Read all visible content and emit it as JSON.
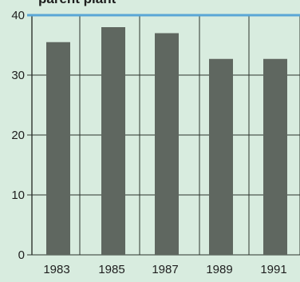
{
  "chart_data": {
    "type": "bar",
    "title": "parent plant",
    "categories": [
      "1983",
      "1985",
      "1987",
      "1989",
      "1991"
    ],
    "values": [
      35.5,
      38,
      37,
      32.7,
      32.7
    ],
    "y_ticks": [
      "0",
      "10",
      "20",
      "30",
      "40"
    ],
    "ylim": [
      0,
      40
    ],
    "grid": true,
    "xlabel": "",
    "ylabel": "",
    "colors": {
      "background": "#d8ecdf",
      "bar": "#5f6760",
      "grid": "#2d332e",
      "top_line": "#5aa6d6",
      "text": "#1e1e1e"
    }
  }
}
